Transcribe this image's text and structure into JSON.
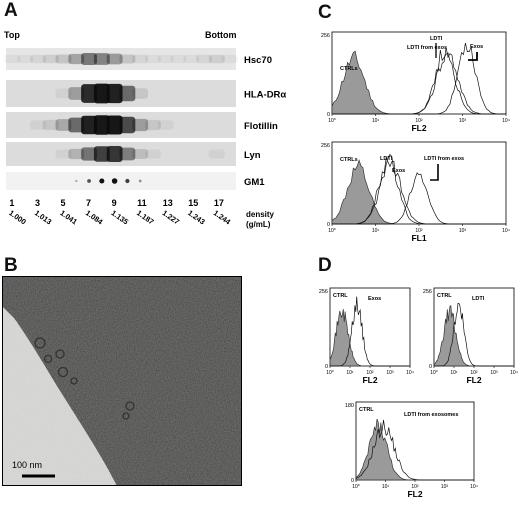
{
  "panel_letters": [
    "A",
    "B",
    "C",
    "D"
  ],
  "panel_a": {
    "top_label": "Top",
    "bottom_label": "Bottom",
    "blots": [
      {
        "label": "Hsc70",
        "strength": [
          0.05,
          0.05,
          0.08,
          0.1,
          0.15,
          0.3,
          0.5,
          0.45,
          0.35,
          0.15,
          0.08,
          0.05,
          0.05,
          0.05,
          0.05,
          0.08,
          0.1,
          0.05
        ]
      },
      {
        "label": "HLA-DRα",
        "strength": [
          0,
          0,
          0,
          0,
          0.05,
          0.3,
          0.85,
          0.95,
          0.9,
          0.55,
          0.1,
          0,
          0,
          0,
          0,
          0,
          0,
          0
        ]
      },
      {
        "label": "Flotillin",
        "strength": [
          0,
          0,
          0.05,
          0.1,
          0.25,
          0.55,
          0.9,
          1.0,
          0.95,
          0.7,
          0.3,
          0.1,
          0.05,
          0,
          0,
          0,
          0,
          0
        ]
      },
      {
        "label": "Lyn",
        "strength": [
          0,
          0,
          0,
          0,
          0.05,
          0.2,
          0.5,
          0.75,
          0.8,
          0.45,
          0.15,
          0.05,
          0,
          0,
          0,
          0,
          0.05,
          0
        ]
      },
      {
        "label": "GM1",
        "strength": [
          0,
          0,
          0,
          0,
          0,
          0.05,
          0.4,
          0.7,
          0.8,
          0.5,
          0.15,
          0,
          0,
          0,
          0,
          0,
          0,
          0
        ]
      }
    ],
    "fraction_numbers": [
      "1",
      "3",
      "5",
      "7",
      "9",
      "11",
      "13",
      "15",
      "17"
    ],
    "densities": [
      "1.000",
      "1.013",
      "1.041",
      "1.084",
      "1.135",
      "1.187",
      "1.227",
      "1.243",
      "1.244"
    ],
    "density_label_line1": "density",
    "density_label_line2": "(g/mL)"
  },
  "panel_b": {
    "scale_bar_label": "100 nm"
  },
  "panel_c": {
    "top_plot": {
      "y_max_label": "256",
      "x_axis_label": "FL2",
      "labels": {
        "ctrl": "CTRLs",
        "ldti": "LDTI",
        "ldti_exos": "LDTI from exos",
        "exos": "Exos"
      },
      "peak_log_positions": [
        0.5,
        2.6,
        3.1
      ]
    },
    "bottom_plot": {
      "y_max_label": "256",
      "x_axis_label": "FL1",
      "labels": {
        "ctrl": "CTRLs",
        "ldti": "LDTI",
        "exos": "Exos",
        "ldti_exos": "LDTI from exos"
      },
      "peak_log_positions": [
        0.6,
        1.3,
        2.0
      ]
    },
    "x_ticks": [
      "10⁰",
      "10¹",
      "10²",
      "10³",
      "10⁴"
    ]
  },
  "panel_d": {
    "plots": [
      {
        "y_max_label": "256",
        "x_axis_label": "FL2",
        "labels": {
          "ctrl": "CTRL",
          "sample": "Exos"
        }
      },
      {
        "y_max_label": "256",
        "x_axis_label": "FL2",
        "labels": {
          "ctrl": "CTRL",
          "sample": "LDTI"
        }
      },
      {
        "y_max_label": "180",
        "x_axis_label": "FL2",
        "labels": {
          "ctrl": "CTRL",
          "sample": "LDTI from exosomes"
        }
      }
    ],
    "x_ticks": [
      "10⁰",
      "10¹",
      "10²",
      "10³",
      "10⁴"
    ]
  }
}
